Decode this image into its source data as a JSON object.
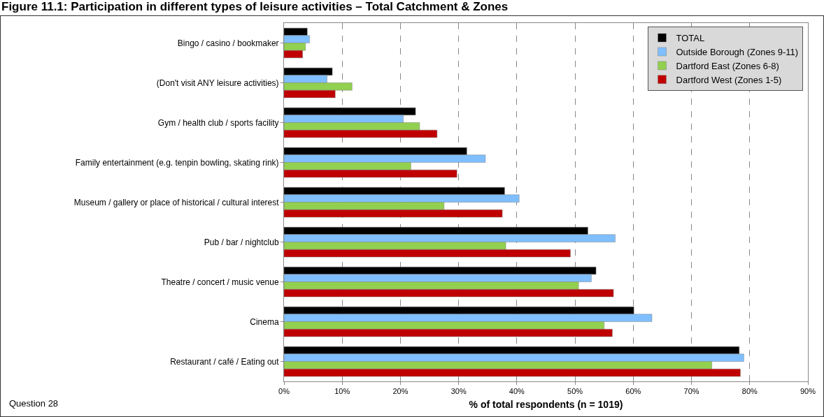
{
  "chart_data": {
    "type": "bar",
    "orientation": "horizontal",
    "title": "Figure 11.1: Participation in different types of leisure activities – Total Catchment & Zones",
    "xlabel": "% of total respondents (n = 1019)",
    "categories": [
      "Bingo / casino / bookmaker",
      "(Don't visit ANY leisure activities)",
      "Gym / health club / sports facility",
      "Family entertainment (e.g. tenpin bowling, skating rink)",
      "Museum / gallery or place of historical / cultural interest",
      "Pub / bar / nightclub",
      "Theatre / concert / music venue",
      "Cinema",
      "Restaurant / café / Eating out"
    ],
    "series": [
      {
        "name": "TOTAL",
        "color": "#000000",
        "values": [
          4.0,
          8.3,
          22.6,
          31.4,
          37.9,
          52.2,
          53.6,
          60.1,
          78.2
        ]
      },
      {
        "name": "Outside Borough (Zones 9-11)",
        "color": "#7fbfff",
        "values": [
          4.4,
          7.4,
          20.5,
          34.6,
          40.4,
          56.9,
          52.8,
          63.2,
          79.0
        ]
      },
      {
        "name": "Dartford East (Zones 6-8)",
        "color": "#92d050",
        "values": [
          3.7,
          11.7,
          23.3,
          21.8,
          27.5,
          38.1,
          50.6,
          55.0,
          73.5
        ]
      },
      {
        "name": "Dartford West (Zones 1-5)",
        "color": "#c00000",
        "values": [
          3.2,
          8.8,
          26.3,
          29.7,
          37.5,
          49.2,
          56.6,
          56.4,
          78.4
        ]
      }
    ],
    "xlim": [
      0,
      90
    ],
    "xticks": [
      {
        "value": 0,
        "label": "0%"
      },
      {
        "value": 10,
        "label": "10%"
      },
      {
        "value": 20,
        "label": "20%"
      },
      {
        "value": 30,
        "label": "30%"
      },
      {
        "value": 40,
        "label": "40%"
      },
      {
        "value": 50,
        "label": "50%"
      },
      {
        "value": 60,
        "label": "60%"
      },
      {
        "value": 70,
        "label": "70%"
      },
      {
        "value": 80,
        "label": "80%"
      },
      {
        "value": 90,
        "label": "90%"
      }
    ],
    "grid": "x",
    "legend": "top right",
    "annotations": [
      "Question 28"
    ]
  }
}
